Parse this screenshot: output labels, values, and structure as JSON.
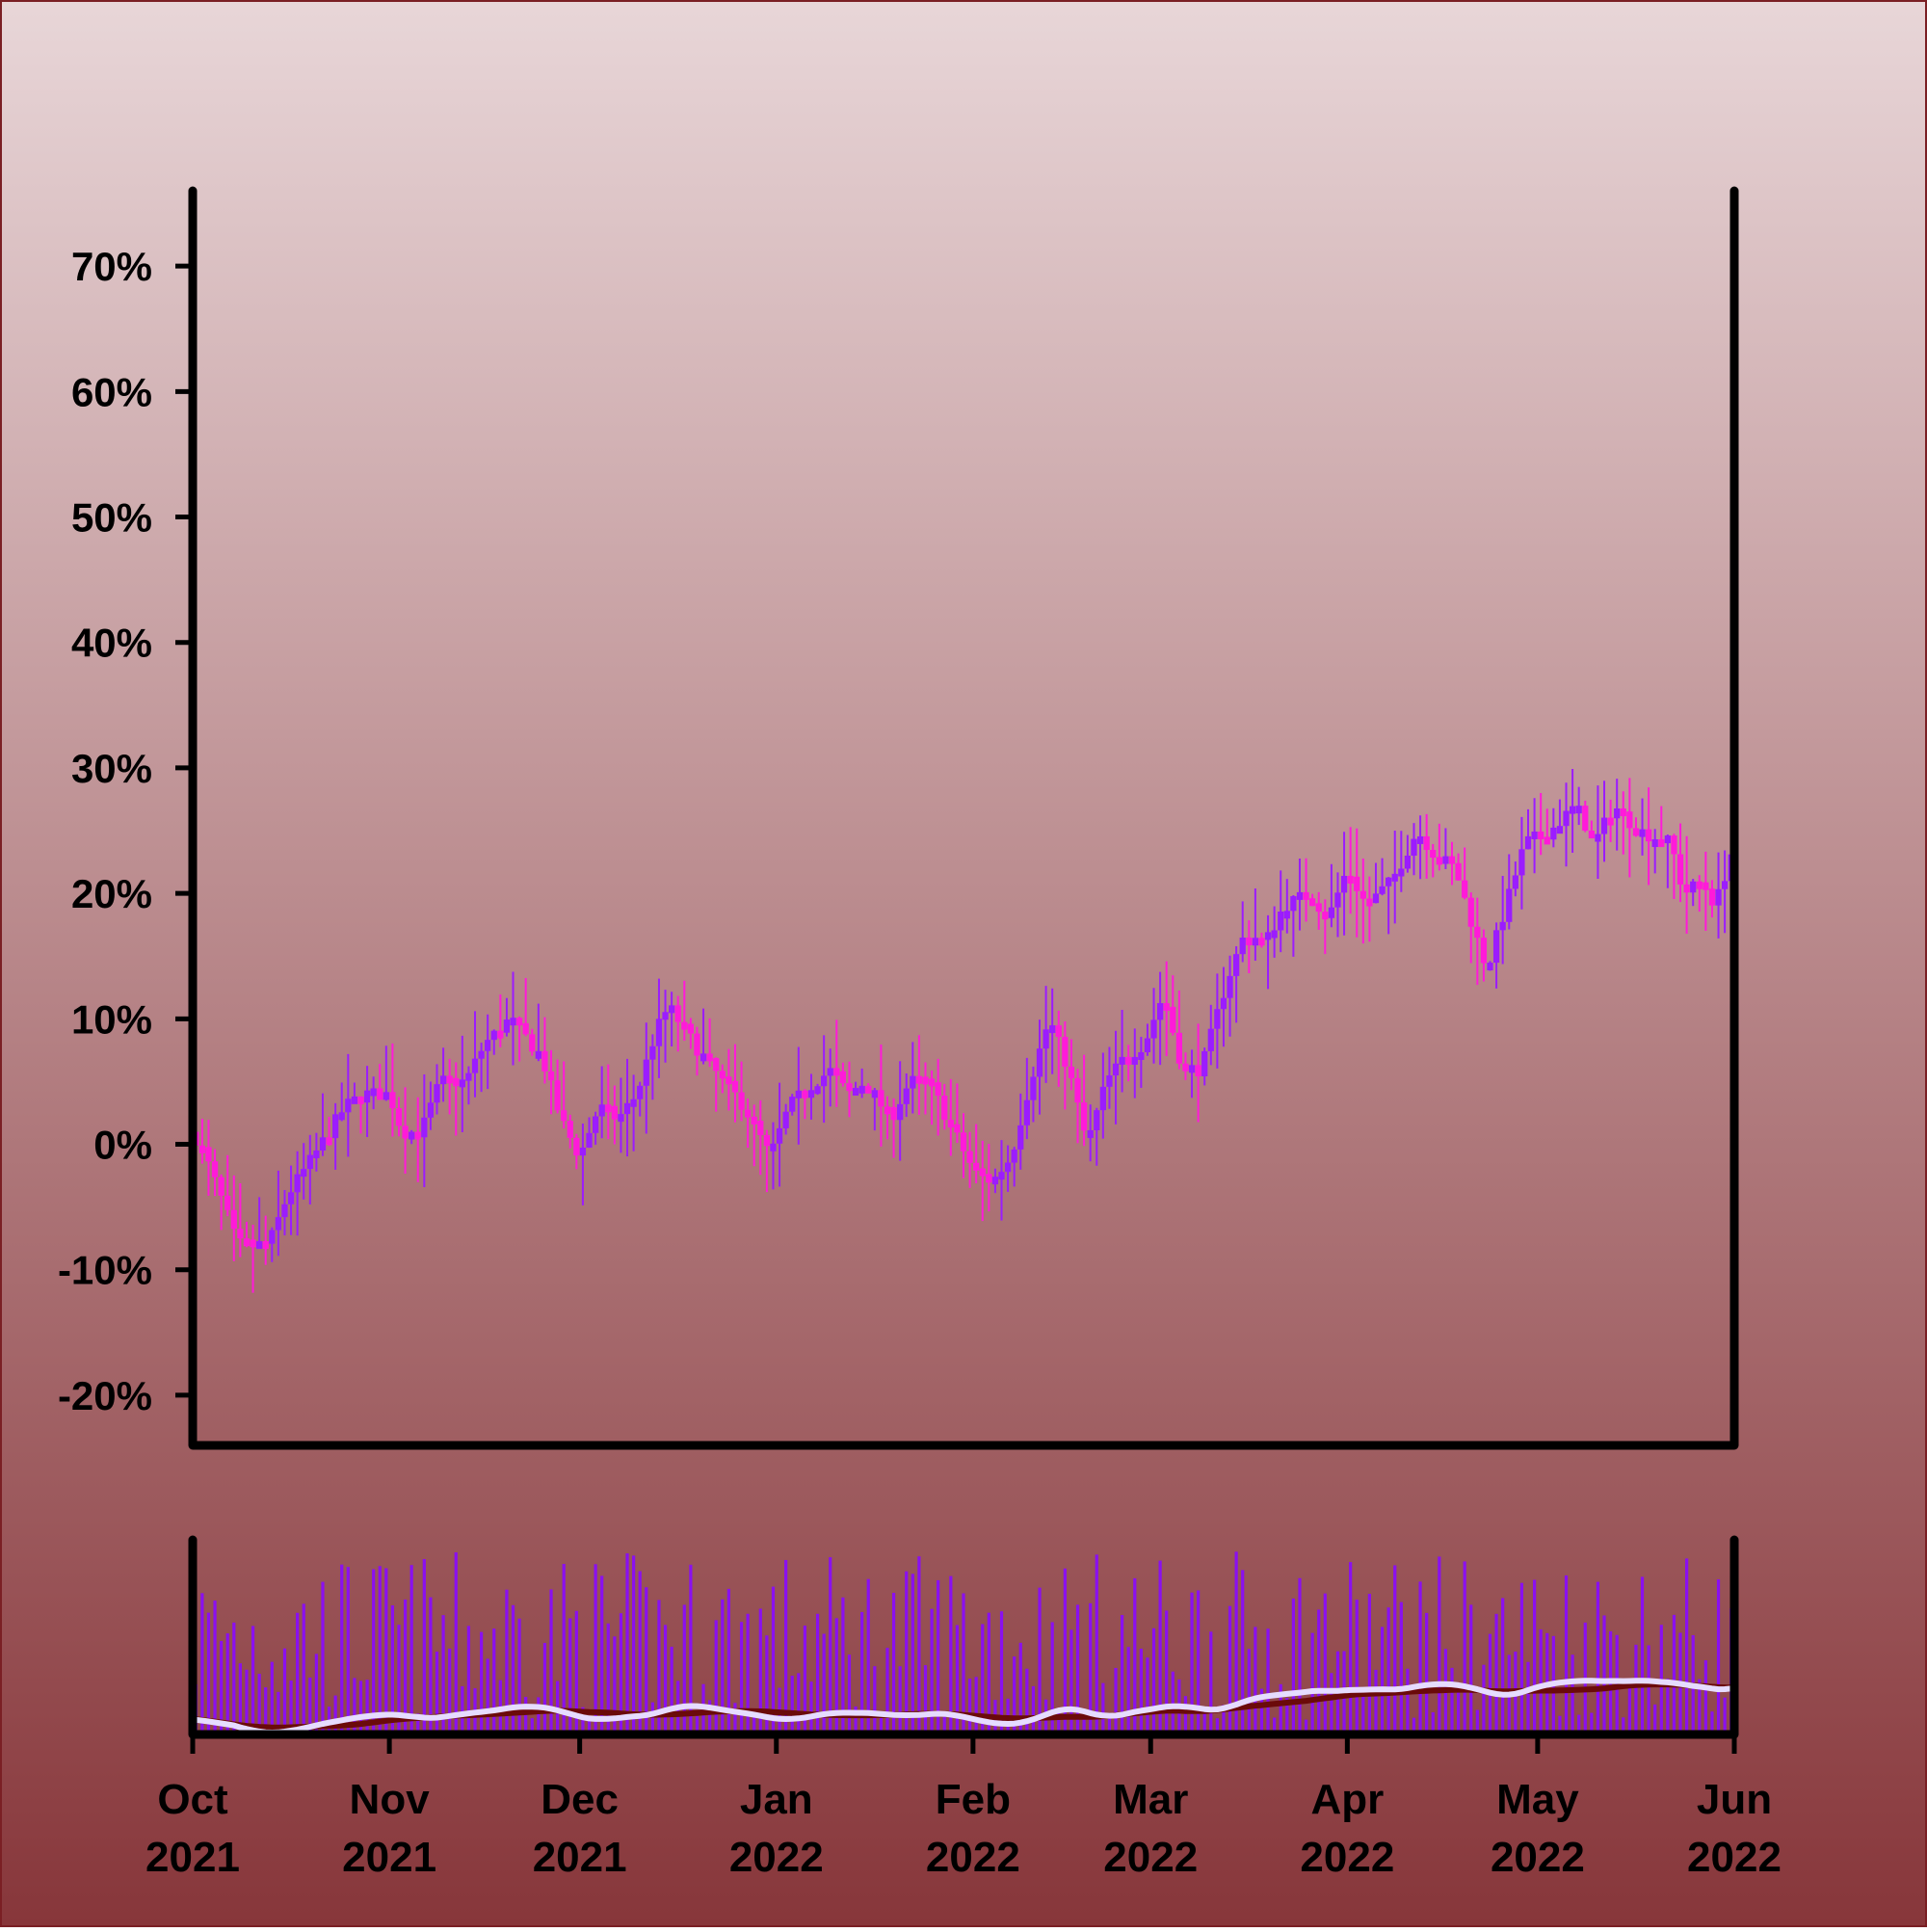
{
  "colors": {
    "background_top": "#e8d6d8",
    "background_bottom": "#87363a",
    "border": "#7a1f24",
    "axis": "#000000",
    "up": "#9b1cff",
    "down": "#ff1ad9",
    "volume": "#8a10f0",
    "ma_fast": "#e6dcff",
    "ma_slow": "#6b0a0a"
  },
  "chart_data": {
    "type": "candlestick",
    "x_range": [
      "2021-10-01",
      "2022-06-01"
    ],
    "ylim": [
      -24,
      76
    ],
    "y_ticks": [
      -20,
      -10,
      0,
      10,
      20,
      30,
      40,
      50,
      60,
      70
    ],
    "y_tick_labels": [
      "-20%",
      "-10%",
      "0%",
      "10%",
      "20%",
      "30%",
      "40%",
      "50%",
      "60%",
      "70%"
    ],
    "x_ticks": [
      {
        "date": "2021-10-01",
        "label": [
          "Oct",
          "2021"
        ]
      },
      {
        "date": "2021-11-01",
        "label": [
          "Nov",
          "2021"
        ]
      },
      {
        "date": "2021-12-01",
        "label": [
          "Dec",
          "2021"
        ]
      },
      {
        "date": "2022-01-01",
        "label": [
          "Jan",
          "2022"
        ]
      },
      {
        "date": "2022-02-01",
        "label": [
          "Feb",
          "2022"
        ]
      },
      {
        "date": "2022-03-01",
        "label": [
          "Mar",
          "2022"
        ]
      },
      {
        "date": "2022-04-01",
        "label": [
          "Apr",
          "2022"
        ]
      },
      {
        "date": "2022-05-01",
        "label": [
          "May",
          "2022"
        ]
      },
      {
        "date": "2022-06-01",
        "label": [
          "Jun",
          "2022"
        ]
      }
    ],
    "close_trend": [
      [
        "2021-10-01",
        1
      ],
      [
        "2021-10-03",
        -1
      ],
      [
        "2021-10-06",
        -5
      ],
      [
        "2021-10-08",
        -8
      ],
      [
        "2021-10-13",
        -8
      ],
      [
        "2021-10-16",
        -4
      ],
      [
        "2021-10-20",
        -1
      ],
      [
        "2021-10-25",
        3
      ],
      [
        "2021-10-28",
        4
      ],
      [
        "2021-11-01",
        4
      ],
      [
        "2021-11-03",
        1
      ],
      [
        "2021-11-06",
        1
      ],
      [
        "2021-11-09",
        5
      ],
      [
        "2021-11-13",
        5
      ],
      [
        "2021-11-16",
        8
      ],
      [
        "2021-11-20",
        10
      ],
      [
        "2021-11-25",
        7
      ],
      [
        "2021-11-28",
        2
      ],
      [
        "2021-12-01",
        -1
      ],
      [
        "2021-12-04",
        3
      ],
      [
        "2021-12-07",
        2
      ],
      [
        "2021-12-10",
        4
      ],
      [
        "2021-12-13",
        9
      ],
      [
        "2021-12-15",
        11
      ],
      [
        "2021-12-19",
        8
      ],
      [
        "2021-12-22",
        6
      ],
      [
        "2021-12-27",
        3
      ],
      [
        "2021-12-31",
        -1
      ],
      [
        "2022-01-03",
        3
      ],
      [
        "2022-01-07",
        5
      ],
      [
        "2022-01-10",
        6
      ],
      [
        "2022-01-12",
        4
      ],
      [
        "2022-01-15",
        5
      ],
      [
        "2022-01-19",
        2
      ],
      [
        "2022-01-22",
        5
      ],
      [
        "2022-01-25",
        5
      ],
      [
        "2022-01-29",
        1
      ],
      [
        "2022-02-01",
        -2
      ],
      [
        "2022-02-04",
        -3
      ],
      [
        "2022-02-07",
        -1
      ],
      [
        "2022-02-10",
        5
      ],
      [
        "2022-02-13",
        10
      ],
      [
        "2022-02-16",
        6
      ],
      [
        "2022-02-19",
        0
      ],
      [
        "2022-02-22",
        5
      ],
      [
        "2022-02-25",
        7
      ],
      [
        "2022-02-28",
        8
      ],
      [
        "2022-03-03",
        12
      ],
      [
        "2022-03-06",
        6
      ],
      [
        "2022-03-09",
        6
      ],
      [
        "2022-03-13",
        13
      ],
      [
        "2022-03-16",
        17
      ],
      [
        "2022-03-19",
        16
      ],
      [
        "2022-03-22",
        19
      ],
      [
        "2022-03-26",
        20
      ],
      [
        "2022-03-29",
        18
      ],
      [
        "2022-04-01",
        22
      ],
      [
        "2022-04-04",
        19
      ],
      [
        "2022-04-08",
        21
      ],
      [
        "2022-04-12",
        25
      ],
      [
        "2022-04-15",
        23
      ],
      [
        "2022-04-18",
        22
      ],
      [
        "2022-04-21",
        17
      ],
      [
        "2022-04-23",
        14
      ],
      [
        "2022-04-26",
        19
      ],
      [
        "2022-04-29",
        24
      ],
      [
        "2022-05-03",
        25
      ],
      [
        "2022-05-07",
        27
      ],
      [
        "2022-05-10",
        24
      ],
      [
        "2022-05-13",
        27
      ],
      [
        "2022-05-17",
        25
      ],
      [
        "2022-05-22",
        24
      ],
      [
        "2022-05-24",
        20
      ],
      [
        "2022-05-27",
        21
      ],
      [
        "2022-05-29",
        19
      ],
      [
        "2022-06-01",
        24
      ]
    ]
  }
}
